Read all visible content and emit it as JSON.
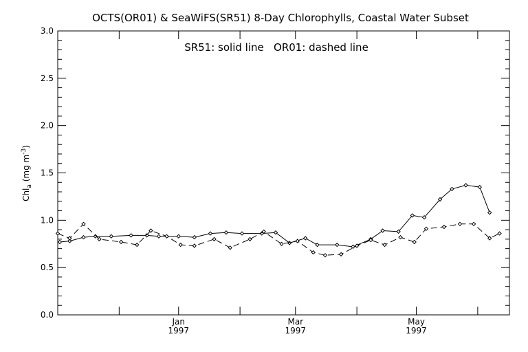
{
  "chart_data": {
    "type": "line",
    "title": "OCTS(OR01) & SeaWiFS(SR51) 8-Day Chlorophylls, Coastal Water Subset",
    "legend_text": "SR51: solid line   OR01: dashed line",
    "ylabel": "Chl",
    "ylabel_sub": "a",
    "ylabel_units": "(mg m",
    "ylabel_units_sup": "-3",
    "ylabel_units_close": ")",
    "ylim": [
      0.0,
      3.0
    ],
    "y_ticks": [
      0.0,
      0.5,
      1.0,
      1.5,
      2.0,
      2.5,
      3.0
    ],
    "y_tick_labels": [
      "0.0",
      "0.5",
      "1.0",
      "1.5",
      "2.0",
      "2.5",
      "3.0"
    ],
    "x_range_days": [
      0,
      228
    ],
    "x_major_ticks": [
      {
        "day": 61,
        "month": "Jan",
        "year": "1997"
      },
      {
        "day": 120,
        "month": "Mar",
        "year": "1997"
      },
      {
        "day": 181,
        "month": "May",
        "year": "1997"
      }
    ],
    "x_minor_ticks_days": [
      0,
      31,
      92,
      151,
      212
    ],
    "grid": false,
    "series": [
      {
        "name": "SR51",
        "style": "solid",
        "color": "#000000",
        "x": [
          1,
          6,
          13,
          19,
          27,
          37,
          45,
          51,
          61,
          69,
          77,
          85,
          93,
          103,
          110,
          117,
          125,
          131,
          141,
          149,
          158,
          164,
          172,
          179,
          185,
          193,
          199,
          206,
          213,
          218
        ],
        "values": [
          0.77,
          0.78,
          0.82,
          0.83,
          0.83,
          0.84,
          0.84,
          0.83,
          0.83,
          0.82,
          0.86,
          0.87,
          0.86,
          0.86,
          0.87,
          0.76,
          0.81,
          0.74,
          0.74,
          0.72,
          0.8,
          0.89,
          0.88,
          1.05,
          1.03,
          1.22,
          1.33,
          1.37,
          1.35,
          1.08
        ]
      },
      {
        "name": "OR01",
        "style": "dashed",
        "color": "#000000",
        "x": [
          0,
          6,
          13,
          21,
          32,
          40,
          47,
          55,
          62,
          69,
          79,
          87,
          97,
          104,
          113,
          121,
          129,
          135,
          143,
          151,
          158,
          165,
          173,
          180,
          186,
          195,
          203,
          210,
          218,
          223
        ],
        "values": [
          0.86,
          0.81,
          0.96,
          0.8,
          0.77,
          0.74,
          0.89,
          0.83,
          0.74,
          0.73,
          0.8,
          0.71,
          0.8,
          0.88,
          0.75,
          0.78,
          0.66,
          0.63,
          0.64,
          0.73,
          0.79,
          0.74,
          0.82,
          0.77,
          0.91,
          0.93,
          0.96,
          0.96,
          0.81,
          0.86
        ]
      }
    ]
  }
}
